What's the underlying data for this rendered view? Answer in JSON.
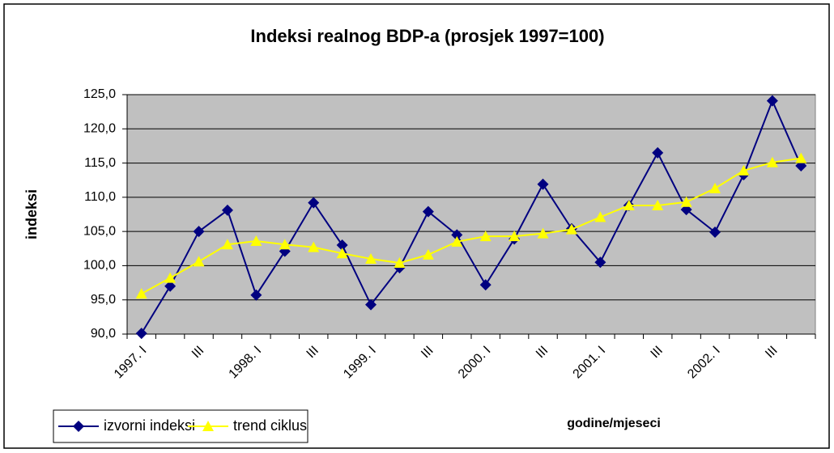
{
  "chart_data": {
    "type": "line",
    "title": "Indeksi realnog BDP-a (prosjek 1997=100)",
    "y_label": "indeksi",
    "x_label": "godine/mjeseci",
    "categories": [
      "1997. I",
      null,
      "III",
      null,
      "1998. I",
      null,
      "III",
      null,
      "1999. I",
      null,
      "III",
      null,
      "2000. I",
      null,
      "III",
      null,
      "2001. I",
      null,
      "III",
      null,
      "2002. I",
      null,
      "III",
      null
    ],
    "series": [
      {
        "name": "izvorni indeksi",
        "color": "#000080",
        "marker": "diamond",
        "values": [
          90.1,
          97.0,
          105.0,
          108.1,
          95.7,
          102.1,
          109.2,
          103.0,
          94.3,
          99.7,
          107.9,
          104.5,
          97.2,
          103.9,
          111.9,
          105.4,
          100.5,
          108.8,
          116.5,
          108.2,
          104.9,
          113.3,
          124.1,
          114.6
        ]
      },
      {
        "name": "trend ciklus",
        "color": "#ffff00",
        "marker": "triangle",
        "values": [
          95.9,
          98.2,
          100.6,
          103.1,
          103.6,
          103.1,
          102.7,
          101.8,
          101.0,
          100.4,
          101.6,
          103.5,
          104.3,
          104.3,
          104.7,
          105.3,
          107.1,
          108.8,
          108.8,
          109.3,
          111.3,
          113.9,
          115.1,
          115.7
        ]
      }
    ],
    "ylim": [
      90,
      125
    ],
    "yticks": [
      {
        "value": 90,
        "label": "90,0"
      },
      {
        "value": 95,
        "label": "95,0"
      },
      {
        "value": 100,
        "label": "100,0"
      },
      {
        "value": 105,
        "label": "105,0"
      },
      {
        "value": 110,
        "label": "110,0"
      },
      {
        "value": 115,
        "label": "115,0"
      },
      {
        "value": 120,
        "label": "120,0"
      },
      {
        "value": 125,
        "label": "125,0"
      }
    ],
    "grid": true,
    "legend": "bottom-left"
  }
}
